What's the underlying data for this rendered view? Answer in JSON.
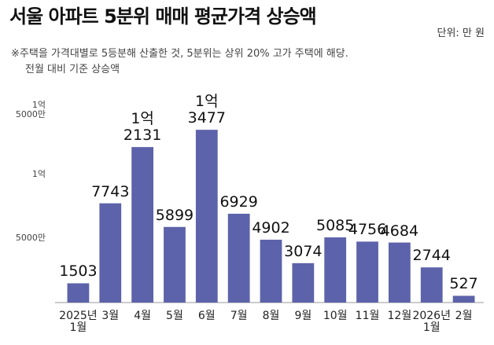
{
  "chart_data": {
    "type": "bar",
    "title": "서울 아파트 5분위 매매 평균가격 상승액",
    "unit": "단위: 만 원",
    "notes": [
      "※주택을 가격대별로 5등분해 산출한 것, 5분위는 상위 20% 고가 주택에 해당.",
      "전월 대비 기준 상승액"
    ],
    "categories": [
      "2025년\n1월",
      "3월",
      "4월",
      "5월",
      "6월",
      "7월",
      "8월",
      "9월",
      "10월",
      "11월",
      "12월",
      "2026년\n1월",
      "2월"
    ],
    "values": [
      1503,
      7743,
      12131,
      5899,
      13477,
      6929,
      4902,
      3074,
      5085,
      4756,
      4684,
      2744,
      527
    ],
    "value_labels": [
      "1503",
      "7743",
      "1억\n2131",
      "5899",
      "1억\n3477",
      "6929",
      "4902",
      "3074",
      "5085",
      "4756",
      "4684",
      "2744",
      "527"
    ],
    "color": "#5c63aa",
    "ylim": [
      0,
      16000
    ],
    "yticks": [
      {
        "value": 5000,
        "label": "5000만"
      },
      {
        "value": 10000,
        "label": "1억"
      },
      {
        "value": 15000,
        "label": "1억\n5000만"
      }
    ],
    "grid": false
  }
}
